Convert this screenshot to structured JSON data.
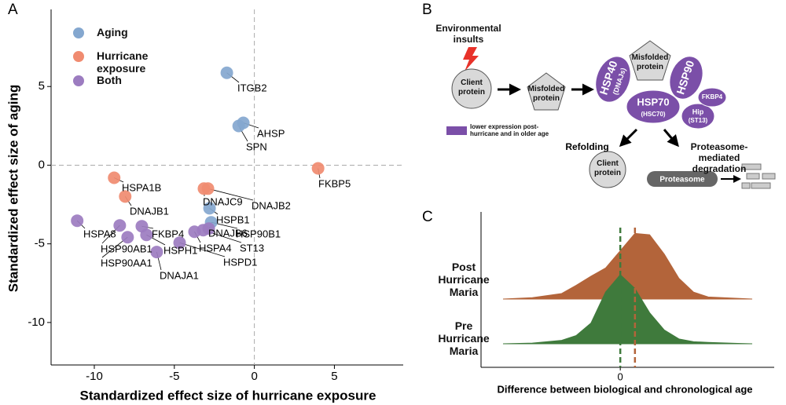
{
  "panel_labels": [
    "A",
    "B",
    "C"
  ],
  "chart_data": [
    {
      "type": "scatter",
      "xlabel": "Standardized effect size of hurricane exposure",
      "ylabel": "Standardized effect size of aging",
      "xlim": [
        -12.7,
        9.3
      ],
      "ylim": [
        -12.7,
        9.9
      ],
      "xticks": [
        -10,
        -5,
        0,
        5
      ],
      "yticks": [
        5,
        0,
        -5,
        -10
      ],
      "hlines": [
        0
      ],
      "vlines": [
        0
      ],
      "series": [
        {
          "name": "Aging",
          "color": "#84a7cf",
          "labels": [
            "ITGB2",
            "AHSP",
            "SPN",
            "HSPB1",
            "HSP90B1"
          ],
          "x": [
            -1.72,
            -0.69,
            -0.98,
            -2.8,
            -2.7
          ],
          "y": [
            5.87,
            2.69,
            2.49,
            -2.74,
            -3.63
          ]
        },
        {
          "name": "Hurricane exposure",
          "color": "#f08b70",
          "labels": [
            "FKBP5",
            "HSPA1B",
            "DNAJB1",
            "DNAJC9",
            "DNAJB2"
          ],
          "x": [
            3.98,
            -8.76,
            -8.07,
            -3.15,
            -2.9
          ],
          "y": [
            -0.2,
            -0.8,
            -1.99,
            -1.49,
            -1.49
          ]
        },
        {
          "name": "Both",
          "color": "#9c7cc0",
          "labels": [
            "HSPA8",
            "HSP90AB1",
            "HSP90AA1",
            "FKBP4",
            "HSPH1",
            "DNAJA1",
            "HSPD1",
            "HSPA4",
            "ST13",
            "DNAJB6"
          ],
          "x": [
            -11.07,
            -8.41,
            -7.92,
            -7.03,
            -6.74,
            -6.1,
            -4.67,
            -3.74,
            -3.2,
            -2.85
          ],
          "y": [
            -3.53,
            -3.83,
            -4.58,
            -3.88,
            -4.43,
            -5.52,
            -4.93,
            -4.23,
            -4.13,
            -4.03
          ]
        }
      ]
    },
    {
      "type": "ridge",
      "xlabel": "Difference between biological and chronological age",
      "xlim": [
        -9.5,
        10.5
      ],
      "ylim": [
        0,
        1
      ],
      "xticks": [
        0
      ],
      "x": [
        -8,
        -6,
        -4,
        -3,
        -2,
        -1,
        0,
        1,
        2,
        3,
        4,
        5,
        6,
        8,
        9
      ],
      "series": [
        {
          "name": "Post Hurricane Maria",
          "color": "#b3643a",
          "mean": 1,
          "values": [
            0,
            0.02,
            0.08,
            0.2,
            0.33,
            0.45,
            0.7,
            0.95,
            0.93,
            0.65,
            0.3,
            0.1,
            0.03,
            0.01,
            0
          ]
        },
        {
          "name": "Pre Hurricane Maria",
          "color": "#3f7a3c",
          "mean": 0,
          "values": [
            0,
            0.01,
            0.05,
            0.12,
            0.3,
            0.75,
            1.0,
            0.8,
            0.45,
            0.2,
            0.07,
            0.03,
            0.02,
            0.005,
            0
          ]
        }
      ]
    }
  ],
  "diagram": {
    "trigger": "Environmental insults",
    "nodes": [
      {
        "label": "Client protein"
      },
      {
        "label": "Misfolded protein"
      },
      {
        "label": "Misfolded protein"
      },
      {
        "label": "HSP40",
        "sublabel": "(DNAJs)"
      },
      {
        "label": "HSP90"
      },
      {
        "label": "HSP70",
        "sublabel": "(HSC70)"
      },
      {
        "label": "Hip",
        "sublabel": "(ST13)"
      },
      {
        "label": "FKBP4"
      },
      {
        "label": "Client protein"
      },
      {
        "label": "Proteasome"
      }
    ],
    "outcomes": [
      "Refolding",
      "Proteasome-mediated degradation"
    ],
    "legend": "lower expression post-hurricane and in older age"
  }
}
